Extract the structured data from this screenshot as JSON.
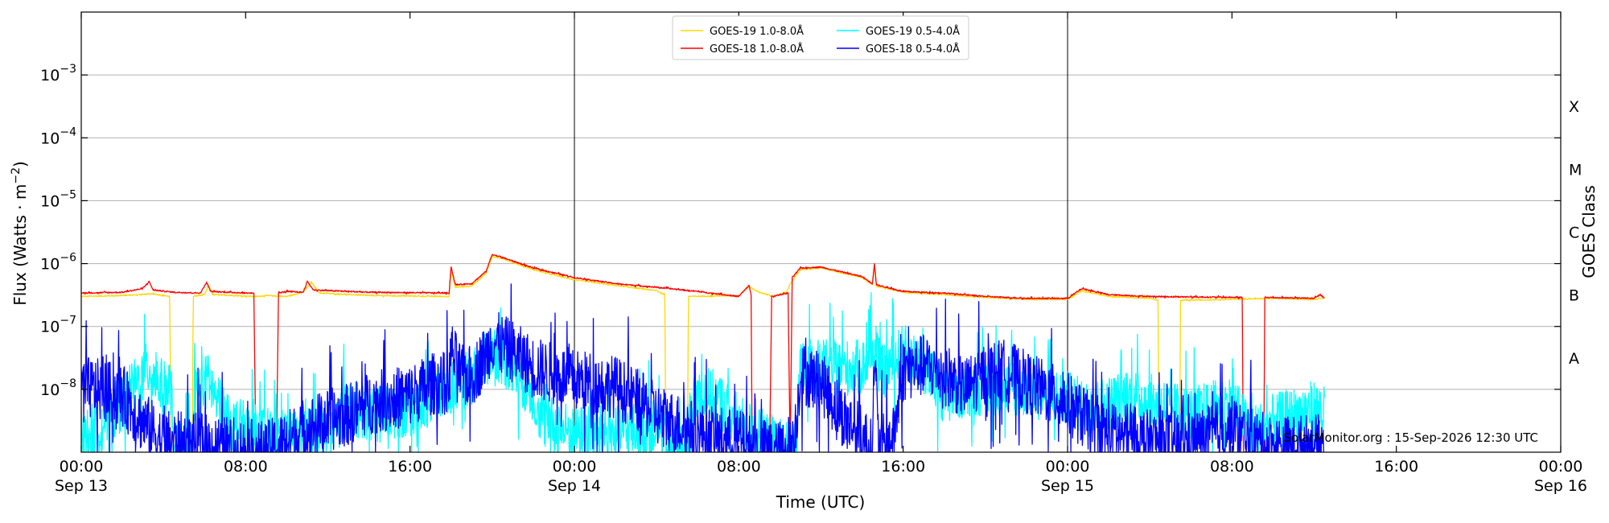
{
  "chart_data": {
    "type": "line",
    "title": "",
    "xlabel": "Time (UTC)",
    "ylabel_main": "Flux (Watts · m",
    "ylabel_sup": "−2",
    "ylabel_close": ")",
    "y2label": "GOES Class",
    "y_scale": "log",
    "xlim_hours": [
      0,
      72
    ],
    "ylim": [
      1e-09,
      0.01
    ],
    "grid": "horizontal",
    "legend_position": "top-center",
    "credit": "SolarMonitor.org : 15-Sep-2026 12:30 UTC",
    "x_ticks": [
      {
        "t": 0,
        "line1": "00:00",
        "line2": "Sep 13"
      },
      {
        "t": 8,
        "line1": "08:00",
        "line2": ""
      },
      {
        "t": 16,
        "line1": "16:00",
        "line2": ""
      },
      {
        "t": 24,
        "line1": "00:00",
        "line2": "Sep 14"
      },
      {
        "t": 32,
        "line1": "08:00",
        "line2": ""
      },
      {
        "t": 40,
        "line1": "16:00",
        "line2": ""
      },
      {
        "t": 48,
        "line1": "00:00",
        "line2": "Sep 15"
      },
      {
        "t": 56,
        "line1": "08:00",
        "line2": ""
      },
      {
        "t": 64,
        "line1": "16:00",
        "line2": ""
      },
      {
        "t": 72,
        "line1": "00:00",
        "line2": "Sep 16"
      }
    ],
    "day_boundaries": [
      24,
      48
    ],
    "y_ticks": [
      {
        "exp": -8,
        "label_base": "10",
        "label_exp": "−8"
      },
      {
        "exp": -7,
        "label_base": "10",
        "label_exp": "−7"
      },
      {
        "exp": -6,
        "label_base": "10",
        "label_exp": "−6"
      },
      {
        "exp": -5,
        "label_base": "10",
        "label_exp": "−5"
      },
      {
        "exp": -4,
        "label_base": "10",
        "label_exp": "−4"
      },
      {
        "exp": -3,
        "label_base": "10",
        "label_exp": "−3"
      }
    ],
    "goes_classes": [
      {
        "label": "A",
        "exp": -7.5
      },
      {
        "label": "B",
        "exp": -6.5
      },
      {
        "label": "C",
        "exp": -5.5
      },
      {
        "label": "M",
        "exp": -4.5
      },
      {
        "label": "X",
        "exp": -3.5
      }
    ],
    "series": [
      {
        "name": "GOES-19 1.0-8.0Å",
        "color": "#FFD700",
        "noise": 0.008,
        "points": [
          [
            0,
            3e-07
          ],
          [
            2,
            3.1e-07
          ],
          [
            3.5,
            3.3e-07
          ],
          [
            4.3,
            3e-07
          ],
          [
            4.38,
            1e-09
          ],
          [
            5.4,
            1e-09
          ],
          [
            5.45,
            3e-07
          ],
          [
            6,
            3.2e-07
          ],
          [
            6.2,
            4.5e-07
          ],
          [
            6.4,
            3.2e-07
          ],
          [
            8.5,
            3e-07
          ],
          [
            9,
            3.1e-07
          ],
          [
            10,
            3e-07
          ],
          [
            10.8,
            3.5e-07
          ],
          [
            11.2,
            5e-07
          ],
          [
            11.6,
            3.4e-07
          ],
          [
            14,
            3.1e-07
          ],
          [
            17.9,
            3e-07
          ],
          [
            18,
            8e-07
          ],
          [
            18.2,
            4.2e-07
          ],
          [
            19,
            4.4e-07
          ],
          [
            19.7,
            7e-07
          ],
          [
            20,
            1.3e-06
          ],
          [
            20.5,
            1.2e-06
          ],
          [
            22,
            8e-07
          ],
          [
            24,
            5.5e-07
          ],
          [
            26,
            4.5e-07
          ],
          [
            28,
            3.7e-07
          ],
          [
            28.4,
            3.2e-07
          ],
          [
            28.45,
            1e-09
          ],
          [
            29.5,
            1e-09
          ],
          [
            29.55,
            3e-07
          ],
          [
            32,
            3.1e-07
          ],
          [
            32.5,
            4.3e-07
          ],
          [
            33,
            3.5e-07
          ],
          [
            33.7,
            3e-07
          ],
          [
            34.3,
            3.5e-07
          ],
          [
            34.7,
            6e-07
          ],
          [
            35,
            8e-07
          ],
          [
            36,
            8.5e-07
          ],
          [
            38,
            6e-07
          ],
          [
            38.5,
            4.6e-07
          ],
          [
            38.6,
            9e-07
          ],
          [
            38.7,
            4.4e-07
          ],
          [
            40,
            3.5e-07
          ],
          [
            42,
            3.2e-07
          ],
          [
            44,
            2.9e-07
          ],
          [
            46,
            2.7e-07
          ],
          [
            48,
            2.7e-07
          ],
          [
            48.7,
            3.7e-07
          ],
          [
            50,
            3e-07
          ],
          [
            52,
            2.8e-07
          ],
          [
            52.4,
            2.6e-07
          ],
          [
            52.45,
            1e-09
          ],
          [
            53.45,
            1e-09
          ],
          [
            53.5,
            2.6e-07
          ],
          [
            56,
            2.7e-07
          ],
          [
            58,
            2.8e-07
          ],
          [
            60,
            2.7e-07
          ],
          [
            60.5,
            2.8e-07
          ]
        ]
      },
      {
        "name": "GOES-18 1.0-8.0Å",
        "color": "#FF0000",
        "noise": 0.01,
        "points": [
          [
            0,
            3.4e-07
          ],
          [
            2,
            3.5e-07
          ],
          [
            3,
            4e-07
          ],
          [
            3.3,
            5.2e-07
          ],
          [
            3.5,
            3.8e-07
          ],
          [
            4.5,
            3.5e-07
          ],
          [
            5.8,
            3.4e-07
          ],
          [
            6.1,
            5e-07
          ],
          [
            6.3,
            3.6e-07
          ],
          [
            8,
            3.4e-07
          ],
          [
            8.4,
            3.4e-07
          ],
          [
            8.5,
            1e-09
          ],
          [
            9.5,
            1e-09
          ],
          [
            9.6,
            3.4e-07
          ],
          [
            10,
            3.6e-07
          ],
          [
            10.8,
            3.5e-07
          ],
          [
            11,
            5.2e-07
          ],
          [
            11.3,
            3.8e-07
          ],
          [
            14,
            3.5e-07
          ],
          [
            17.9,
            3.4e-07
          ],
          [
            18,
            9e-07
          ],
          [
            18.2,
            4.6e-07
          ],
          [
            19,
            4.8e-07
          ],
          [
            19.7,
            7.5e-07
          ],
          [
            20,
            1.4e-06
          ],
          [
            20.5,
            1.25e-06
          ],
          [
            22,
            8.5e-07
          ],
          [
            24,
            6e-07
          ],
          [
            26,
            4.8e-07
          ],
          [
            28,
            4.2e-07
          ],
          [
            30,
            3.6e-07
          ],
          [
            32,
            3e-07
          ],
          [
            32.5,
            4.5e-07
          ],
          [
            32.6,
            3.2e-07
          ],
          [
            32.65,
            1e-09
          ],
          [
            33.5,
            1e-09
          ],
          [
            33.6,
            3e-07
          ],
          [
            34.4,
            3.4e-07
          ],
          [
            34.5,
            1e-09
          ],
          [
            34.6,
            6e-07
          ],
          [
            35,
            8.5e-07
          ],
          [
            36,
            8.8e-07
          ],
          [
            38,
            6.2e-07
          ],
          [
            38.5,
            4.8e-07
          ],
          [
            38.6,
            1e-06
          ],
          [
            38.7,
            4.6e-07
          ],
          [
            40,
            3.6e-07
          ],
          [
            42,
            3.4e-07
          ],
          [
            44,
            3e-07
          ],
          [
            46,
            2.8e-07
          ],
          [
            48,
            2.8e-07
          ],
          [
            48.7,
            4e-07
          ],
          [
            50,
            3.2e-07
          ],
          [
            52,
            3e-07
          ],
          [
            56,
            2.9e-07
          ],
          [
            56.5,
            2.9e-07
          ],
          [
            56.55,
            1e-09
          ],
          [
            57.55,
            1e-09
          ],
          [
            57.6,
            2.9e-07
          ],
          [
            60,
            2.8e-07
          ],
          [
            60.3,
            3.2e-07
          ],
          [
            60.5,
            2.9e-07
          ]
        ]
      },
      {
        "name": "GOES-19 0.5-4.0Å",
        "color": "#00FFFF",
        "noise": 0.45,
        "points": [
          [
            0,
            1.5e-09
          ],
          [
            1.5,
            4e-09
          ],
          [
            2.5,
            1e-08
          ],
          [
            3.3,
            2.2e-08
          ],
          [
            4,
            1e-08
          ],
          [
            4.4,
            1.1e-08
          ],
          [
            4.45,
            1e-09
          ],
          [
            5.4,
            1e-09
          ],
          [
            5.5,
            8e-09
          ],
          [
            6.2,
            1.4e-08
          ],
          [
            7,
            3e-09
          ],
          [
            9,
            1.8e-09
          ],
          [
            11,
            1.7e-09
          ],
          [
            12.5,
            3e-09
          ],
          [
            13,
            5e-09
          ],
          [
            14.5,
            4e-09
          ],
          [
            16,
            5e-09
          ],
          [
            17,
            7e-09
          ],
          [
            18,
            1.1e-08
          ],
          [
            19,
            1.6e-08
          ],
          [
            19.6,
            2.5e-08
          ],
          [
            20,
            4.5e-08
          ],
          [
            21,
            2.2e-08
          ],
          [
            22,
            8e-09
          ],
          [
            22.5,
            3e-09
          ],
          [
            24,
            2e-09
          ],
          [
            26,
            2e-09
          ],
          [
            28.4,
            2.5e-09
          ],
          [
            28.45,
            1e-09
          ],
          [
            29.5,
            1e-09
          ],
          [
            29.55,
            3e-09
          ],
          [
            30,
            9e-09
          ],
          [
            31,
            7e-09
          ],
          [
            32,
            3e-09
          ],
          [
            33,
            1.8e-09
          ],
          [
            34.8,
            1e-09
          ],
          [
            35,
            2.2e-08
          ],
          [
            38,
            2.2e-08
          ],
          [
            38.5,
            4e-08
          ],
          [
            39,
            1.8e-08
          ],
          [
            40,
            4e-08
          ],
          [
            41,
            2.2e-08
          ],
          [
            42,
            8e-09
          ],
          [
            44,
            1.1e-08
          ],
          [
            46,
            1e-08
          ],
          [
            48,
            7e-09
          ],
          [
            49,
            5e-09
          ],
          [
            50,
            6e-09
          ],
          [
            51,
            8e-09
          ],
          [
            53,
            5e-09
          ],
          [
            54,
            4e-09
          ],
          [
            56,
            6e-09
          ],
          [
            57,
            2e-09
          ],
          [
            58,
            3e-09
          ],
          [
            60,
            5e-09
          ],
          [
            60.5,
            4e-09
          ]
        ]
      },
      {
        "name": "GOES-18 0.5-4.0Å",
        "color": "#0000FF",
        "noise": 0.5,
        "points": [
          [
            0,
            1.1e-08
          ],
          [
            2,
            8e-09
          ],
          [
            3,
            3e-09
          ],
          [
            4,
            1.5e-09
          ],
          [
            6,
            1.3e-09
          ],
          [
            8,
            1.1e-09
          ],
          [
            9,
            1e-09
          ],
          [
            10,
            1.5e-09
          ],
          [
            11,
            2.5e-09
          ],
          [
            13,
            4e-09
          ],
          [
            14,
            6e-09
          ],
          [
            16,
            8e-09
          ],
          [
            17,
            1.2e-08
          ],
          [
            17.9,
            1.3e-08
          ],
          [
            18,
            4e-08
          ],
          [
            18.5,
            1.6e-08
          ],
          [
            19,
            1.6e-08
          ],
          [
            19.7,
            3.5e-08
          ],
          [
            20,
            6e-08
          ],
          [
            21,
            4e-08
          ],
          [
            22,
            2.2e-08
          ],
          [
            24,
            1.4e-08
          ],
          [
            26,
            1.1e-08
          ],
          [
            27,
            7e-09
          ],
          [
            28,
            4e-09
          ],
          [
            30,
            2e-09
          ],
          [
            32,
            1.5e-09
          ],
          [
            33,
            1.1e-09
          ],
          [
            34,
            1e-09
          ],
          [
            34.7,
            1.5e-09
          ],
          [
            35,
            1.8e-08
          ],
          [
            36,
            1.3e-08
          ],
          [
            37,
            4e-09
          ],
          [
            38,
            1.8e-09
          ],
          [
            38.5,
            1e-09
          ],
          [
            38.6,
            4e-08
          ],
          [
            38.8,
            1.2e-09
          ],
          [
            39.5,
            1.5e-09
          ],
          [
            40,
            2e-08
          ],
          [
            41,
            2.4e-08
          ],
          [
            42,
            1.8e-08
          ],
          [
            43,
            1e-08
          ],
          [
            44,
            1.8e-08
          ],
          [
            45,
            2e-08
          ],
          [
            46,
            1.3e-08
          ],
          [
            47,
            9e-09
          ],
          [
            48,
            6e-09
          ],
          [
            49,
            3e-09
          ],
          [
            50,
            2e-09
          ],
          [
            52,
            1.5e-09
          ],
          [
            54,
            1.4e-09
          ],
          [
            56,
            2.5e-09
          ],
          [
            57,
            1.6e-09
          ],
          [
            58,
            1.2e-09
          ],
          [
            60,
            1.3e-09
          ],
          [
            60.5,
            1.2e-09
          ]
        ]
      }
    ]
  }
}
